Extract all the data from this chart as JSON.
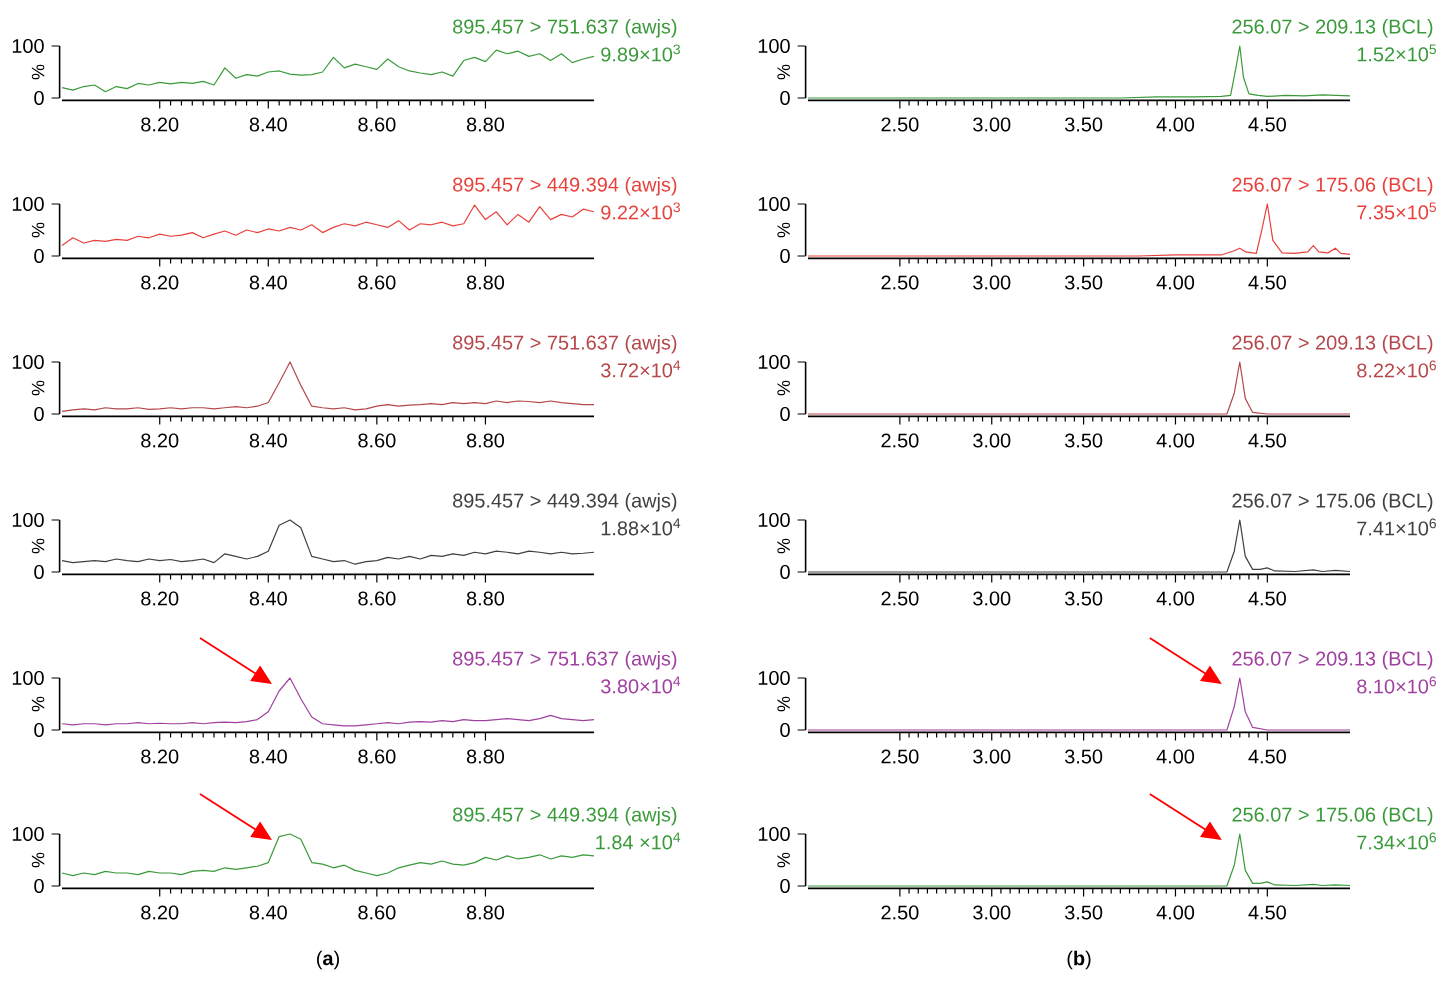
{
  "chart_data": [
    {
      "type": "line",
      "title": "895.457 > 751.637 (awjs)",
      "subtitle": "9.89×10$^{3}$",
      "ylabel": "%",
      "x": [
        8.02,
        8.04,
        8.06,
        8.08,
        8.1,
        8.12,
        8.14,
        8.16,
        8.18,
        8.2,
        8.22,
        8.24,
        8.26,
        8.28,
        8.3,
        8.32,
        8.34,
        8.36,
        8.38,
        8.4,
        8.42,
        8.44,
        8.46,
        8.48,
        8.5,
        8.52,
        8.54,
        8.56,
        8.58,
        8.6,
        8.62,
        8.64,
        8.66,
        8.68,
        8.7,
        8.72,
        8.74,
        8.76,
        8.78,
        8.8,
        8.82,
        8.84,
        8.86,
        8.88,
        8.9,
        8.92,
        8.94,
        8.96,
        8.98,
        9.0
      ],
      "series": [
        {
          "color": "#3a9a3a",
          "values": [
            20,
            15,
            22,
            25,
            12,
            22,
            18,
            28,
            25,
            30,
            27,
            30,
            28,
            32,
            25,
            58,
            38,
            45,
            42,
            50,
            52,
            46,
            44,
            45,
            50,
            78,
            58,
            65,
            60,
            55,
            75,
            60,
            52,
            48,
            45,
            50,
            42,
            72,
            78,
            70,
            92,
            85,
            90,
            80,
            85,
            72,
            85,
            68,
            75,
            80
          ]
        }
      ],
      "xlim": [
        8.02,
        9.0
      ],
      "ylim": [
        0,
        100
      ],
      "xticks": [
        {
          "value": 8.2,
          "label": "8.20"
        },
        {
          "value": 8.4,
          "label": "8.40"
        },
        {
          "value": 8.6,
          "label": "8.60"
        },
        {
          "value": 8.8,
          "label": "8.80"
        }
      ],
      "yticks": [
        0,
        100
      ]
    },
    {
      "type": "line",
      "title": "895.457 > 449.394 (awjs)",
      "subtitle": "9.22×10$^{3}$",
      "ylabel": "%",
      "x": [
        8.02,
        8.04,
        8.06,
        8.08,
        8.1,
        8.12,
        8.14,
        8.16,
        8.18,
        8.2,
        8.22,
        8.24,
        8.26,
        8.28,
        8.3,
        8.32,
        8.34,
        8.36,
        8.38,
        8.4,
        8.42,
        8.44,
        8.46,
        8.48,
        8.5,
        8.52,
        8.54,
        8.56,
        8.58,
        8.6,
        8.62,
        8.64,
        8.66,
        8.68,
        8.7,
        8.72,
        8.74,
        8.76,
        8.78,
        8.8,
        8.82,
        8.84,
        8.86,
        8.88,
        8.9,
        8.92,
        8.94,
        8.96,
        8.98,
        9.0
      ],
      "series": [
        {
          "color": "#e8413c",
          "values": [
            20,
            35,
            25,
            30,
            28,
            32,
            30,
            38,
            35,
            42,
            38,
            40,
            45,
            35,
            42,
            48,
            40,
            50,
            45,
            52,
            48,
            55,
            50,
            60,
            45,
            55,
            62,
            58,
            65,
            60,
            55,
            68,
            50,
            62,
            60,
            65,
            58,
            62,
            98,
            70,
            85,
            60,
            80,
            65,
            95,
            70,
            80,
            75,
            90,
            85
          ]
        }
      ],
      "xlim": [
        8.02,
        9.0
      ],
      "ylim": [
        0,
        100
      ],
      "xticks": [
        {
          "value": 8.2,
          "label": "8.20"
        },
        {
          "value": 8.4,
          "label": "8.40"
        },
        {
          "value": 8.6,
          "label": "8.60"
        },
        {
          "value": 8.8,
          "label": "8.80"
        }
      ],
      "yticks": [
        0,
        100
      ]
    },
    {
      "type": "line",
      "title": "895.457 > 751.637 (awjs)",
      "subtitle": "3.72×10$^{4}$",
      "ylabel": "%",
      "x": [
        8.02,
        8.04,
        8.06,
        8.08,
        8.1,
        8.12,
        8.14,
        8.16,
        8.18,
        8.2,
        8.22,
        8.24,
        8.26,
        8.28,
        8.3,
        8.32,
        8.34,
        8.36,
        8.38,
        8.4,
        8.42,
        8.44,
        8.46,
        8.48,
        8.5,
        8.52,
        8.54,
        8.56,
        8.58,
        8.6,
        8.62,
        8.64,
        8.66,
        8.68,
        8.7,
        8.72,
        8.74,
        8.76,
        8.78,
        8.8,
        8.82,
        8.84,
        8.86,
        8.88,
        8.9,
        8.92,
        8.94,
        8.96,
        8.98,
        9.0
      ],
      "series": [
        {
          "color": "#b5474a",
          "values": [
            5,
            8,
            10,
            8,
            12,
            10,
            10,
            12,
            9,
            10,
            12,
            10,
            12,
            12,
            10,
            12,
            14,
            12,
            15,
            22,
            60,
            100,
            55,
            15,
            12,
            10,
            12,
            8,
            10,
            15,
            18,
            15,
            17,
            18,
            20,
            18,
            22,
            20,
            22,
            20,
            25,
            22,
            25,
            24,
            22,
            25,
            22,
            20,
            18,
            18
          ]
        }
      ],
      "xlim": [
        8.02,
        9.0
      ],
      "ylim": [
        0,
        100
      ],
      "xticks": [
        {
          "value": 8.2,
          "label": "8.20"
        },
        {
          "value": 8.4,
          "label": "8.40"
        },
        {
          "value": 8.6,
          "label": "8.60"
        },
        {
          "value": 8.8,
          "label": "8.80"
        }
      ],
      "yticks": [
        0,
        100
      ]
    },
    {
      "type": "line",
      "title": "895.457 > 449.394 (awjs)",
      "subtitle": "1.88×10$^{4}$",
      "ylabel": "%",
      "x": [
        8.02,
        8.04,
        8.06,
        8.08,
        8.1,
        8.12,
        8.14,
        8.16,
        8.18,
        8.2,
        8.22,
        8.24,
        8.26,
        8.28,
        8.3,
        8.32,
        8.34,
        8.36,
        8.38,
        8.4,
        8.42,
        8.44,
        8.46,
        8.48,
        8.5,
        8.52,
        8.54,
        8.56,
        8.58,
        8.6,
        8.62,
        8.64,
        8.66,
        8.68,
        8.7,
        8.72,
        8.74,
        8.76,
        8.78,
        8.8,
        8.82,
        8.84,
        8.86,
        8.88,
        8.9,
        8.92,
        8.94,
        8.96,
        8.98,
        9.0
      ],
      "series": [
        {
          "color": "#404040",
          "values": [
            22,
            18,
            20,
            22,
            20,
            25,
            22,
            20,
            25,
            22,
            24,
            20,
            22,
            25,
            18,
            35,
            30,
            25,
            30,
            40,
            90,
            100,
            85,
            30,
            25,
            20,
            22,
            15,
            20,
            22,
            28,
            25,
            30,
            25,
            32,
            30,
            35,
            32,
            38,
            35,
            40,
            38,
            35,
            40,
            38,
            35,
            38,
            35,
            36,
            38
          ]
        }
      ],
      "xlim": [
        8.02,
        9.0
      ],
      "ylim": [
        0,
        100
      ],
      "xticks": [
        {
          "value": 8.2,
          "label": "8.20"
        },
        {
          "value": 8.4,
          "label": "8.40"
        },
        {
          "value": 8.6,
          "label": "8.60"
        },
        {
          "value": 8.8,
          "label": "8.80"
        }
      ],
      "yticks": [
        0,
        100
      ]
    },
    {
      "type": "line",
      "title": "895.457 > 751.637 (awjs)",
      "subtitle": "3.80×10$^{4}$",
      "ylabel": "%",
      "x": [
        8.02,
        8.04,
        8.06,
        8.08,
        8.1,
        8.12,
        8.14,
        8.16,
        8.18,
        8.2,
        8.22,
        8.24,
        8.26,
        8.28,
        8.3,
        8.32,
        8.34,
        8.36,
        8.38,
        8.4,
        8.42,
        8.44,
        8.46,
        8.48,
        8.5,
        8.52,
        8.54,
        8.56,
        8.58,
        8.6,
        8.62,
        8.64,
        8.66,
        8.68,
        8.7,
        8.72,
        8.74,
        8.76,
        8.78,
        8.8,
        8.82,
        8.84,
        8.86,
        8.88,
        8.9,
        8.92,
        8.94,
        8.96,
        8.98,
        9.0
      ],
      "series": [
        {
          "color": "#a040a0",
          "values": [
            12,
            10,
            12,
            12,
            10,
            12,
            12,
            14,
            12,
            13,
            12,
            12,
            14,
            12,
            14,
            15,
            14,
            16,
            20,
            35,
            75,
            100,
            60,
            25,
            12,
            10,
            8,
            8,
            10,
            12,
            14,
            12,
            15,
            16,
            15,
            18,
            16,
            20,
            18,
            18,
            20,
            22,
            20,
            18,
            22,
            28,
            22,
            20,
            18,
            20
          ]
        }
      ],
      "xlim": [
        8.02,
        9.0
      ],
      "ylim": [
        0,
        100
      ],
      "xticks": [
        {
          "value": 8.2,
          "label": "8.20"
        },
        {
          "value": 8.4,
          "label": "8.40"
        },
        {
          "value": 8.6,
          "label": "8.60"
        },
        {
          "value": 8.8,
          "label": "8.80"
        }
      ],
      "yticks": [
        0,
        100
      ]
    },
    {
      "type": "line",
      "title": "895.457 > 449.394 (awjs)",
      "subtitle": "1.84 ×10$^{4}$",
      "ylabel": "%",
      "annotations": [
        "(**a**)"
      ],
      "x": [
        8.02,
        8.04,
        8.06,
        8.08,
        8.1,
        8.12,
        8.14,
        8.16,
        8.18,
        8.2,
        8.22,
        8.24,
        8.26,
        8.28,
        8.3,
        8.32,
        8.34,
        8.36,
        8.38,
        8.4,
        8.42,
        8.44,
        8.46,
        8.48,
        8.5,
        8.52,
        8.54,
        8.56,
        8.58,
        8.6,
        8.62,
        8.64,
        8.66,
        8.68,
        8.7,
        8.72,
        8.74,
        8.76,
        8.78,
        8.8,
        8.82,
        8.84,
        8.86,
        8.88,
        8.9,
        8.92,
        8.94,
        8.96,
        8.98,
        9.0
      ],
      "series": [
        {
          "color": "#3a9a3a",
          "values": [
            25,
            20,
            25,
            22,
            28,
            25,
            25,
            22,
            28,
            25,
            25,
            22,
            28,
            30,
            28,
            35,
            32,
            35,
            38,
            45,
            95,
            100,
            90,
            45,
            42,
            35,
            40,
            30,
            25,
            20,
            25,
            35,
            40,
            45,
            42,
            48,
            42,
            40,
            45,
            55,
            50,
            58,
            52,
            55,
            60,
            52,
            58,
            55,
            60,
            58
          ]
        }
      ],
      "xlim": [
        8.02,
        9.0
      ],
      "ylim": [
        0,
        100
      ],
      "xticks": [
        {
          "value": 8.2,
          "label": "8.20"
        },
        {
          "value": 8.4,
          "label": "8.40"
        },
        {
          "value": 8.6,
          "label": "8.60"
        },
        {
          "value": 8.8,
          "label": "8.80"
        }
      ],
      "yticks": [
        0,
        100
      ]
    },
    {
      "type": "line",
      "title": "256.07 > 209.13 (BCL)",
      "subtitle": "1.52×10$^{5}$",
      "ylabel": "%",
      "x": [
        2.0,
        3.7,
        3.9,
        4.1,
        4.25,
        4.3,
        4.33,
        4.35,
        4.37,
        4.4,
        4.45,
        4.5,
        4.6,
        4.7,
        4.8,
        4.95
      ],
      "series": [
        {
          "color": "#3a9a3a",
          "values": [
            0,
            0,
            2,
            2,
            3,
            5,
            60,
            100,
            40,
            8,
            5,
            3,
            5,
            4,
            6,
            4
          ]
        }
      ],
      "xlim": [
        2.0,
        4.95
      ],
      "ylim": [
        0,
        100
      ],
      "xticks": [
        {
          "value": 2.5,
          "label": "2.50"
        },
        {
          "value": 3.0,
          "label": "3.00"
        },
        {
          "value": 3.5,
          "label": "3.50"
        },
        {
          "value": 4.0,
          "label": "4.00"
        },
        {
          "value": 4.5,
          "label": "4.50"
        }
      ],
      "yticks": [
        0,
        100
      ]
    },
    {
      "type": "line",
      "title": "256.07 > 175.06 (BCL)",
      "subtitle": "7.35×10$^{5}$",
      "ylabel": "%",
      "x": [
        2.0,
        3.8,
        4.0,
        4.25,
        4.32,
        4.35,
        4.38,
        4.44,
        4.47,
        4.5,
        4.53,
        4.58,
        4.65,
        4.72,
        4.75,
        4.78,
        4.83,
        4.87,
        4.9,
        4.95
      ],
      "series": [
        {
          "color": "#e8413c",
          "values": [
            0,
            0,
            2,
            2,
            10,
            15,
            8,
            5,
            50,
            100,
            30,
            6,
            5,
            8,
            20,
            8,
            6,
            15,
            5,
            3
          ]
        }
      ],
      "xlim": [
        2.0,
        4.95
      ],
      "ylim": [
        0,
        100
      ],
      "xticks": [
        {
          "value": 2.5,
          "label": "2.50"
        },
        {
          "value": 3.0,
          "label": "3.00"
        },
        {
          "value": 3.5,
          "label": "3.50"
        },
        {
          "value": 4.0,
          "label": "4.00"
        },
        {
          "value": 4.5,
          "label": "4.50"
        }
      ],
      "yticks": [
        0,
        100
      ]
    },
    {
      "type": "line",
      "title": "256.07 > 209.13 (BCL)",
      "subtitle": "8.22×10$^{6}$",
      "ylabel": "%",
      "x": [
        2.0,
        4.28,
        4.32,
        4.35,
        4.38,
        4.42,
        4.5,
        4.95
      ],
      "series": [
        {
          "color": "#b5474a",
          "values": [
            0,
            0,
            40,
            100,
            30,
            3,
            0,
            0
          ]
        }
      ],
      "xlim": [
        2.0,
        4.95
      ],
      "ylim": [
        0,
        100
      ],
      "xticks": [
        {
          "value": 2.5,
          "label": "2.50"
        },
        {
          "value": 3.0,
          "label": "3.00"
        },
        {
          "value": 3.5,
          "label": "3.50"
        },
        {
          "value": 4.0,
          "label": "4.00"
        },
        {
          "value": 4.5,
          "label": "4.50"
        }
      ],
      "yticks": [
        0,
        100
      ]
    },
    {
      "type": "line",
      "title": "256.07 > 175.06 (BCL)",
      "subtitle": "7.41×10$^{6}$",
      "ylabel": "%",
      "x": [
        2.0,
        4.28,
        4.32,
        4.35,
        4.38,
        4.42,
        4.46,
        4.5,
        4.54,
        4.65,
        4.75,
        4.8,
        4.87,
        4.95
      ],
      "series": [
        {
          "color": "#404040",
          "values": [
            0,
            0,
            40,
            100,
            30,
            5,
            5,
            8,
            2,
            1,
            4,
            1,
            3,
            1
          ]
        }
      ],
      "xlim": [
        2.0,
        4.95
      ],
      "ylim": [
        0,
        100
      ],
      "xticks": [
        {
          "value": 2.5,
          "label": "2.50"
        },
        {
          "value": 3.0,
          "label": "3.00"
        },
        {
          "value": 3.5,
          "label": "3.50"
        },
        {
          "value": 4.0,
          "label": "4.00"
        },
        {
          "value": 4.5,
          "label": "4.50"
        }
      ],
      "yticks": [
        0,
        100
      ]
    },
    {
      "type": "line",
      "title": "256.07 > 209.13 (BCL)",
      "subtitle": "8.10×10$^{6}$",
      "ylabel": "%",
      "x": [
        2.0,
        4.28,
        4.32,
        4.35,
        4.38,
        4.42,
        4.5,
        4.95
      ],
      "series": [
        {
          "color": "#a040a0",
          "values": [
            0,
            0,
            45,
            100,
            35,
            5,
            0,
            0
          ]
        }
      ],
      "xlim": [
        2.0,
        4.95
      ],
      "ylim": [
        0,
        100
      ],
      "xticks": [
        {
          "value": 2.5,
          "label": "2.50"
        },
        {
          "value": 3.0,
          "label": "3.00"
        },
        {
          "value": 3.5,
          "label": "3.50"
        },
        {
          "value": 4.0,
          "label": "4.00"
        },
        {
          "value": 4.5,
          "label": "4.50"
        }
      ],
      "yticks": [
        0,
        100
      ]
    },
    {
      "type": "line",
      "title": "256.07 > 175.06 (BCL)",
      "subtitle": "7.34×10$^{6}$",
      "ylabel": "%",
      "annotations": [
        "(**b**)"
      ],
      "x": [
        2.0,
        4.28,
        4.32,
        4.35,
        4.38,
        4.42,
        4.46,
        4.5,
        4.54,
        4.65,
        4.75,
        4.8,
        4.87,
        4.95
      ],
      "series": [
        {
          "color": "#3a9a3a",
          "values": [
            0,
            0,
            40,
            100,
            30,
            5,
            5,
            8,
            2,
            1,
            3,
            1,
            2,
            1
          ]
        }
      ],
      "xlim": [
        2.0,
        4.95
      ],
      "ylim": [
        0,
        100
      ],
      "xticks": [
        {
          "value": 2.5,
          "label": "2.50"
        },
        {
          "value": 3.0,
          "label": "3.00"
        },
        {
          "value": 3.5,
          "label": "3.50"
        },
        {
          "value": 4.0,
          "label": "4.00"
        },
        {
          "value": 4.5,
          "label": "4.50"
        }
      ],
      "yticks": [
        0,
        100
      ]
    }
  ]
}
